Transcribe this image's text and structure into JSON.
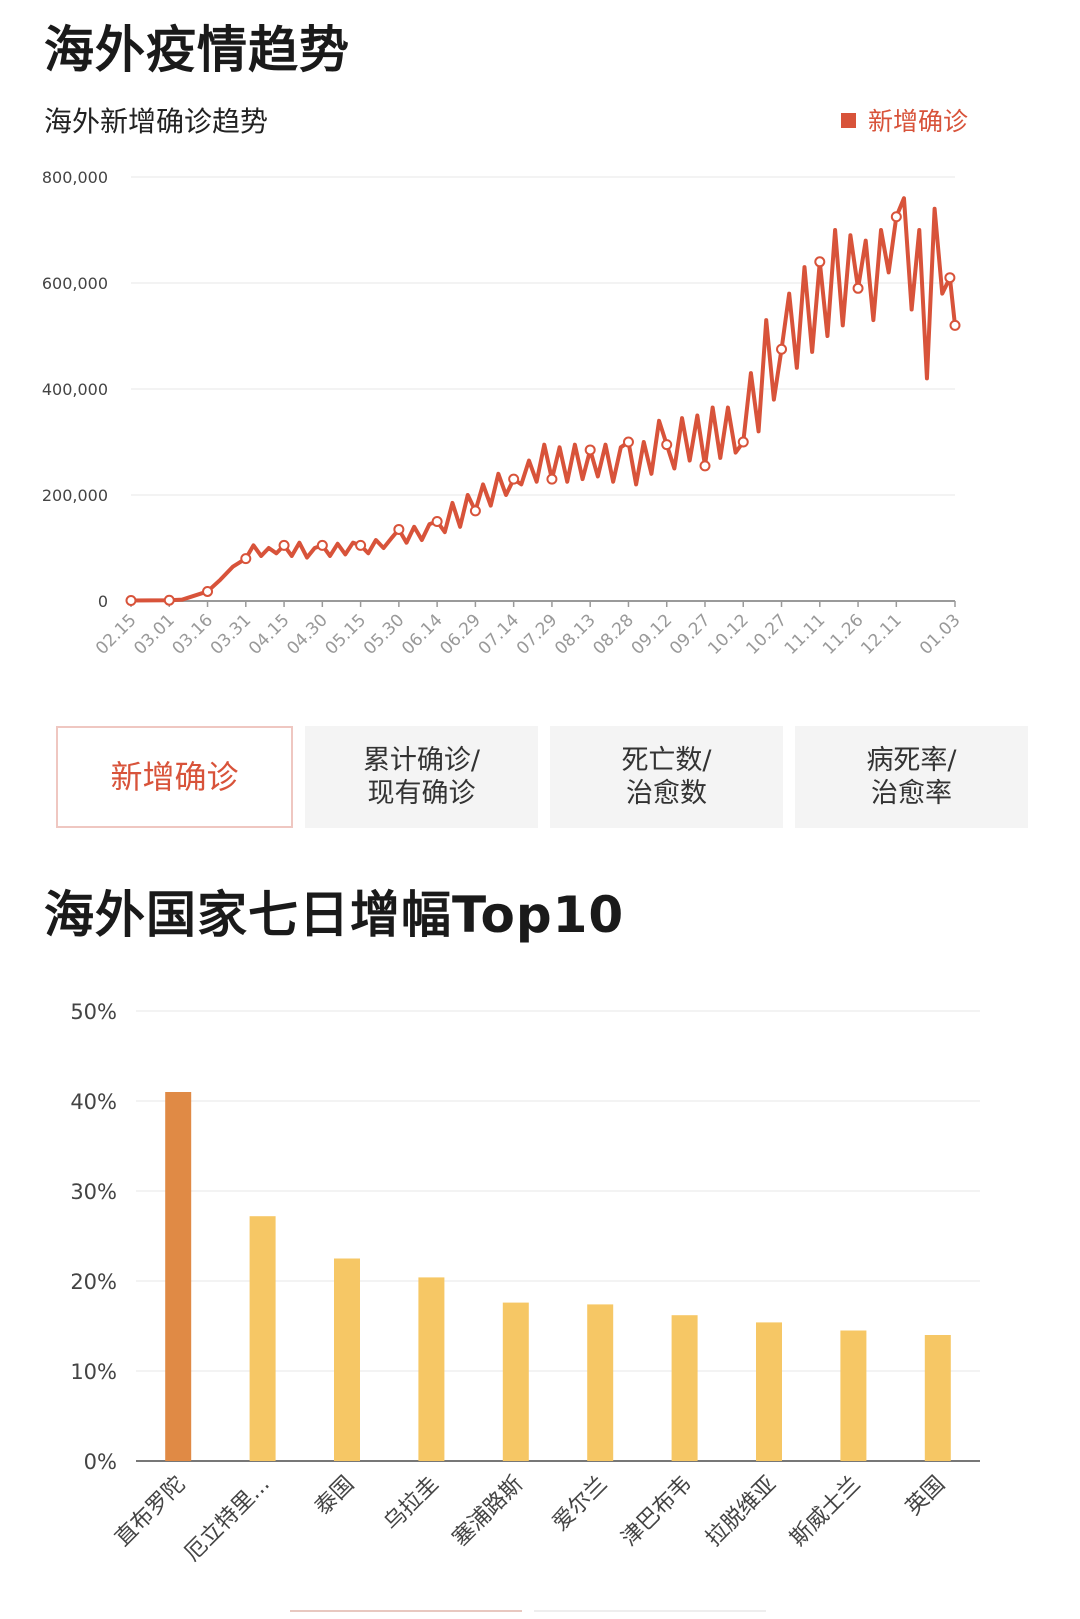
{
  "page": {
    "title": "海外疫情趋势",
    "section2_title": "海外国家七日增幅Top10"
  },
  "tabs": [
    {
      "label": "新增确诊",
      "active": true
    },
    {
      "label": "累计确诊/\n现有确诊",
      "active": false
    },
    {
      "label": "死亡数/\n治愈数",
      "active": false
    },
    {
      "label": "病死率/\n治愈率",
      "active": false
    }
  ],
  "colors": {
    "line": "#d8533a",
    "bar_highlight": "#e08a45",
    "bar": "#f6c765",
    "grid": "#ececec"
  },
  "chart_data": [
    {
      "type": "line",
      "title": "海外新增确诊趋势",
      "legend": [
        "新增确诊"
      ],
      "legend_position": "top-right",
      "x_tick_labels": [
        "02.15",
        "03.01",
        "03.16",
        "03.31",
        "04.15",
        "04.30",
        "05.15",
        "05.30",
        "06.14",
        "06.29",
        "07.14",
        "07.29",
        "08.13",
        "08.28",
        "09.12",
        "09.27",
        "10.12",
        "10.27",
        "11.11",
        "11.26",
        "12.11",
        "01.03"
      ],
      "y_tick_labels": [
        "0",
        "200,000",
        "400,000",
        "600,000",
        "800,000"
      ],
      "ylim": [
        0,
        800000
      ],
      "grid": true,
      "series": [
        {
          "name": "新增确诊",
          "x": [
            "02.15",
            "03.01",
            "03.06",
            "03.16",
            "03.21",
            "03.26",
            "03.31",
            "04.03",
            "04.06",
            "04.09",
            "04.12",
            "04.15",
            "04.18",
            "04.21",
            "04.24",
            "04.27",
            "04.30",
            "05.03",
            "05.06",
            "05.09",
            "05.12",
            "05.15",
            "05.18",
            "05.21",
            "05.24",
            "05.27",
            "05.30",
            "06.02",
            "06.05",
            "06.08",
            "06.11",
            "06.14",
            "06.17",
            "06.20",
            "06.23",
            "06.26",
            "06.29",
            "07.02",
            "07.05",
            "07.08",
            "07.11",
            "07.14",
            "07.17",
            "07.20",
            "07.23",
            "07.26",
            "07.29",
            "08.01",
            "08.04",
            "08.07",
            "08.10",
            "08.13",
            "08.16",
            "08.19",
            "08.22",
            "08.25",
            "08.28",
            "08.31",
            "09.03",
            "09.06",
            "09.09",
            "09.12",
            "09.15",
            "09.18",
            "09.21",
            "09.24",
            "09.27",
            "09.30",
            "10.03",
            "10.06",
            "10.09",
            "10.12",
            "10.15",
            "10.18",
            "10.21",
            "10.24",
            "10.27",
            "10.30",
            "11.02",
            "11.05",
            "11.08",
            "11.11",
            "11.14",
            "11.17",
            "11.20",
            "11.23",
            "11.26",
            "11.29",
            "12.02",
            "12.05",
            "12.08",
            "12.11",
            "12.14",
            "12.17",
            "12.20",
            "12.23",
            "12.26",
            "12.29",
            "01.01",
            "01.03"
          ],
          "values": [
            1000,
            1500,
            2500,
            18000,
            40000,
            65000,
            80000,
            105000,
            85000,
            100000,
            90000,
            105000,
            85000,
            110000,
            82000,
            100000,
            105000,
            85000,
            108000,
            88000,
            110000,
            105000,
            90000,
            115000,
            100000,
            118000,
            135000,
            110000,
            140000,
            115000,
            145000,
            150000,
            130000,
            185000,
            140000,
            200000,
            170000,
            220000,
            180000,
            240000,
            200000,
            230000,
            220000,
            265000,
            225000,
            295000,
            230000,
            290000,
            225000,
            295000,
            230000,
            285000,
            235000,
            295000,
            225000,
            290000,
            300000,
            220000,
            300000,
            240000,
            340000,
            295000,
            250000,
            345000,
            265000,
            350000,
            255000,
            365000,
            270000,
            365000,
            280000,
            300000,
            430000,
            320000,
            530000,
            380000,
            475000,
            580000,
            440000,
            630000,
            470000,
            640000,
            500000,
            700000,
            520000,
            690000,
            590000,
            680000,
            530000,
            700000,
            620000,
            725000,
            760000,
            550000,
            700000,
            420000,
            740000,
            580000,
            610000,
            520000
          ]
        }
      ],
      "markers_at": [
        "02.15",
        "03.01",
        "03.16",
        "03.31",
        "04.15",
        "04.30",
        "05.15",
        "05.30",
        "06.14",
        "06.29",
        "07.14",
        "07.29",
        "08.13",
        "08.28",
        "09.12",
        "09.27",
        "10.12",
        "10.27",
        "11.11",
        "11.26",
        "12.11",
        "01.01",
        "01.03"
      ]
    },
    {
      "type": "bar",
      "categories": [
        "直布罗陀",
        "厄立特里...",
        "泰国",
        "乌拉圭",
        "塞浦路斯",
        "爱尔兰",
        "津巴布韦",
        "拉脱维亚",
        "斯威士兰",
        "英国"
      ],
      "values": [
        41,
        27.2,
        22.5,
        20.4,
        17.6,
        17.4,
        16.2,
        15.4,
        14.5,
        14.0
      ],
      "y_tick_labels": [
        "0%",
        "10%",
        "20%",
        "30%",
        "40%",
        "50%"
      ],
      "ylim": [
        0,
        50
      ],
      "grid": true,
      "highlight_index": 0
    }
  ]
}
